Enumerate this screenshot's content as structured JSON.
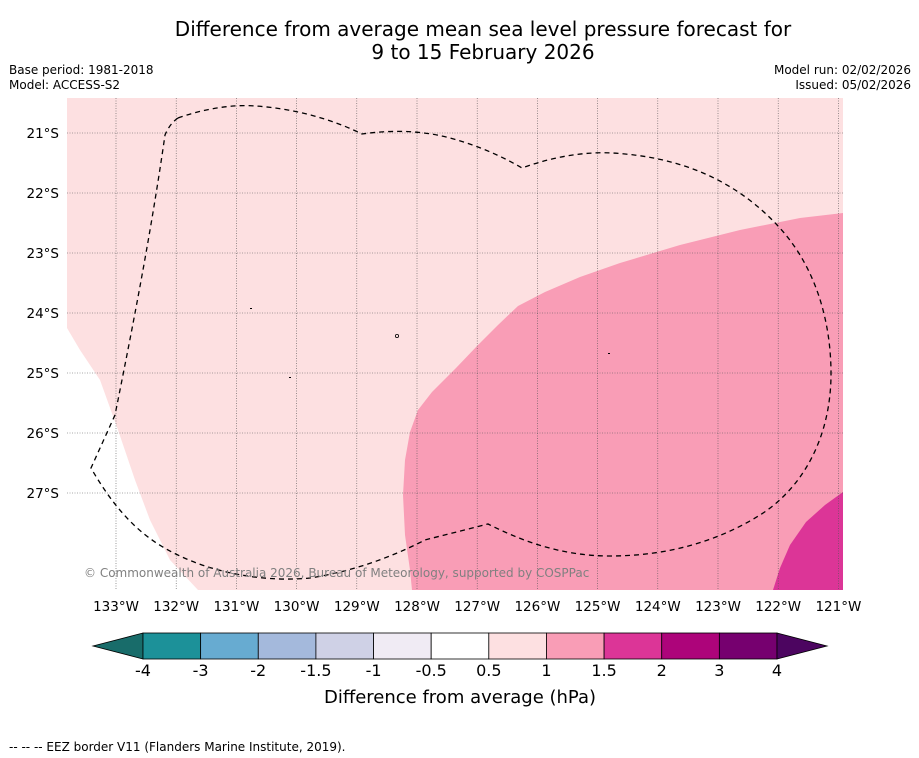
{
  "header": {
    "title_line1": "Difference from average mean sea level pressure forecast for",
    "title_line2": "9 to 15 February 2026",
    "base_period": "Base period: 1981-2018",
    "model": "Model: ACCESS-S2",
    "model_run": "Model run: 02/02/2026",
    "issued": "Issued: 05/02/2026"
  },
  "map": {
    "latitude_labels": [
      "21°S",
      "22°S",
      "23°S",
      "24°S",
      "25°S",
      "26°S",
      "27°S"
    ],
    "longitude_labels": [
      "133°W",
      "132°W",
      "131°W",
      "130°W",
      "129°W",
      "128°W",
      "127°W",
      "126°W",
      "125°W",
      "124°W",
      "123°W",
      "122°W",
      "121°W"
    ],
    "copyright": "© Commonwealth of Australia 2026, Bureau of Meteorology, supported by COSPPac",
    "fill_colors": {
      "range_0_5_to_1": "#fde0e1",
      "range_1_to_1_5": "#f99db6",
      "range_1_5_to_2": "#dc3597",
      "below_0_5": "#ffffff"
    }
  },
  "colorbar": {
    "ticks": [
      "-4",
      "-3",
      "-2",
      "-1.5",
      "-1",
      "-0.5",
      "0.5",
      "1",
      "1.5",
      "2",
      "3",
      "4"
    ],
    "colors": [
      "#186c6a",
      "#1c9199",
      "#67abd1",
      "#a4b9dc",
      "#cfd1e6",
      "#f0ebf4",
      "#ffffff",
      "#fde0e1",
      "#f99db6",
      "#dc3597",
      "#ad047a",
      "#76006f",
      "#4c0560"
    ],
    "title": "Difference from average (hPa)"
  },
  "footer": {
    "legend_text": "--  --  -- EEZ border V11 (Flanders Marine Institute, 2019)."
  }
}
